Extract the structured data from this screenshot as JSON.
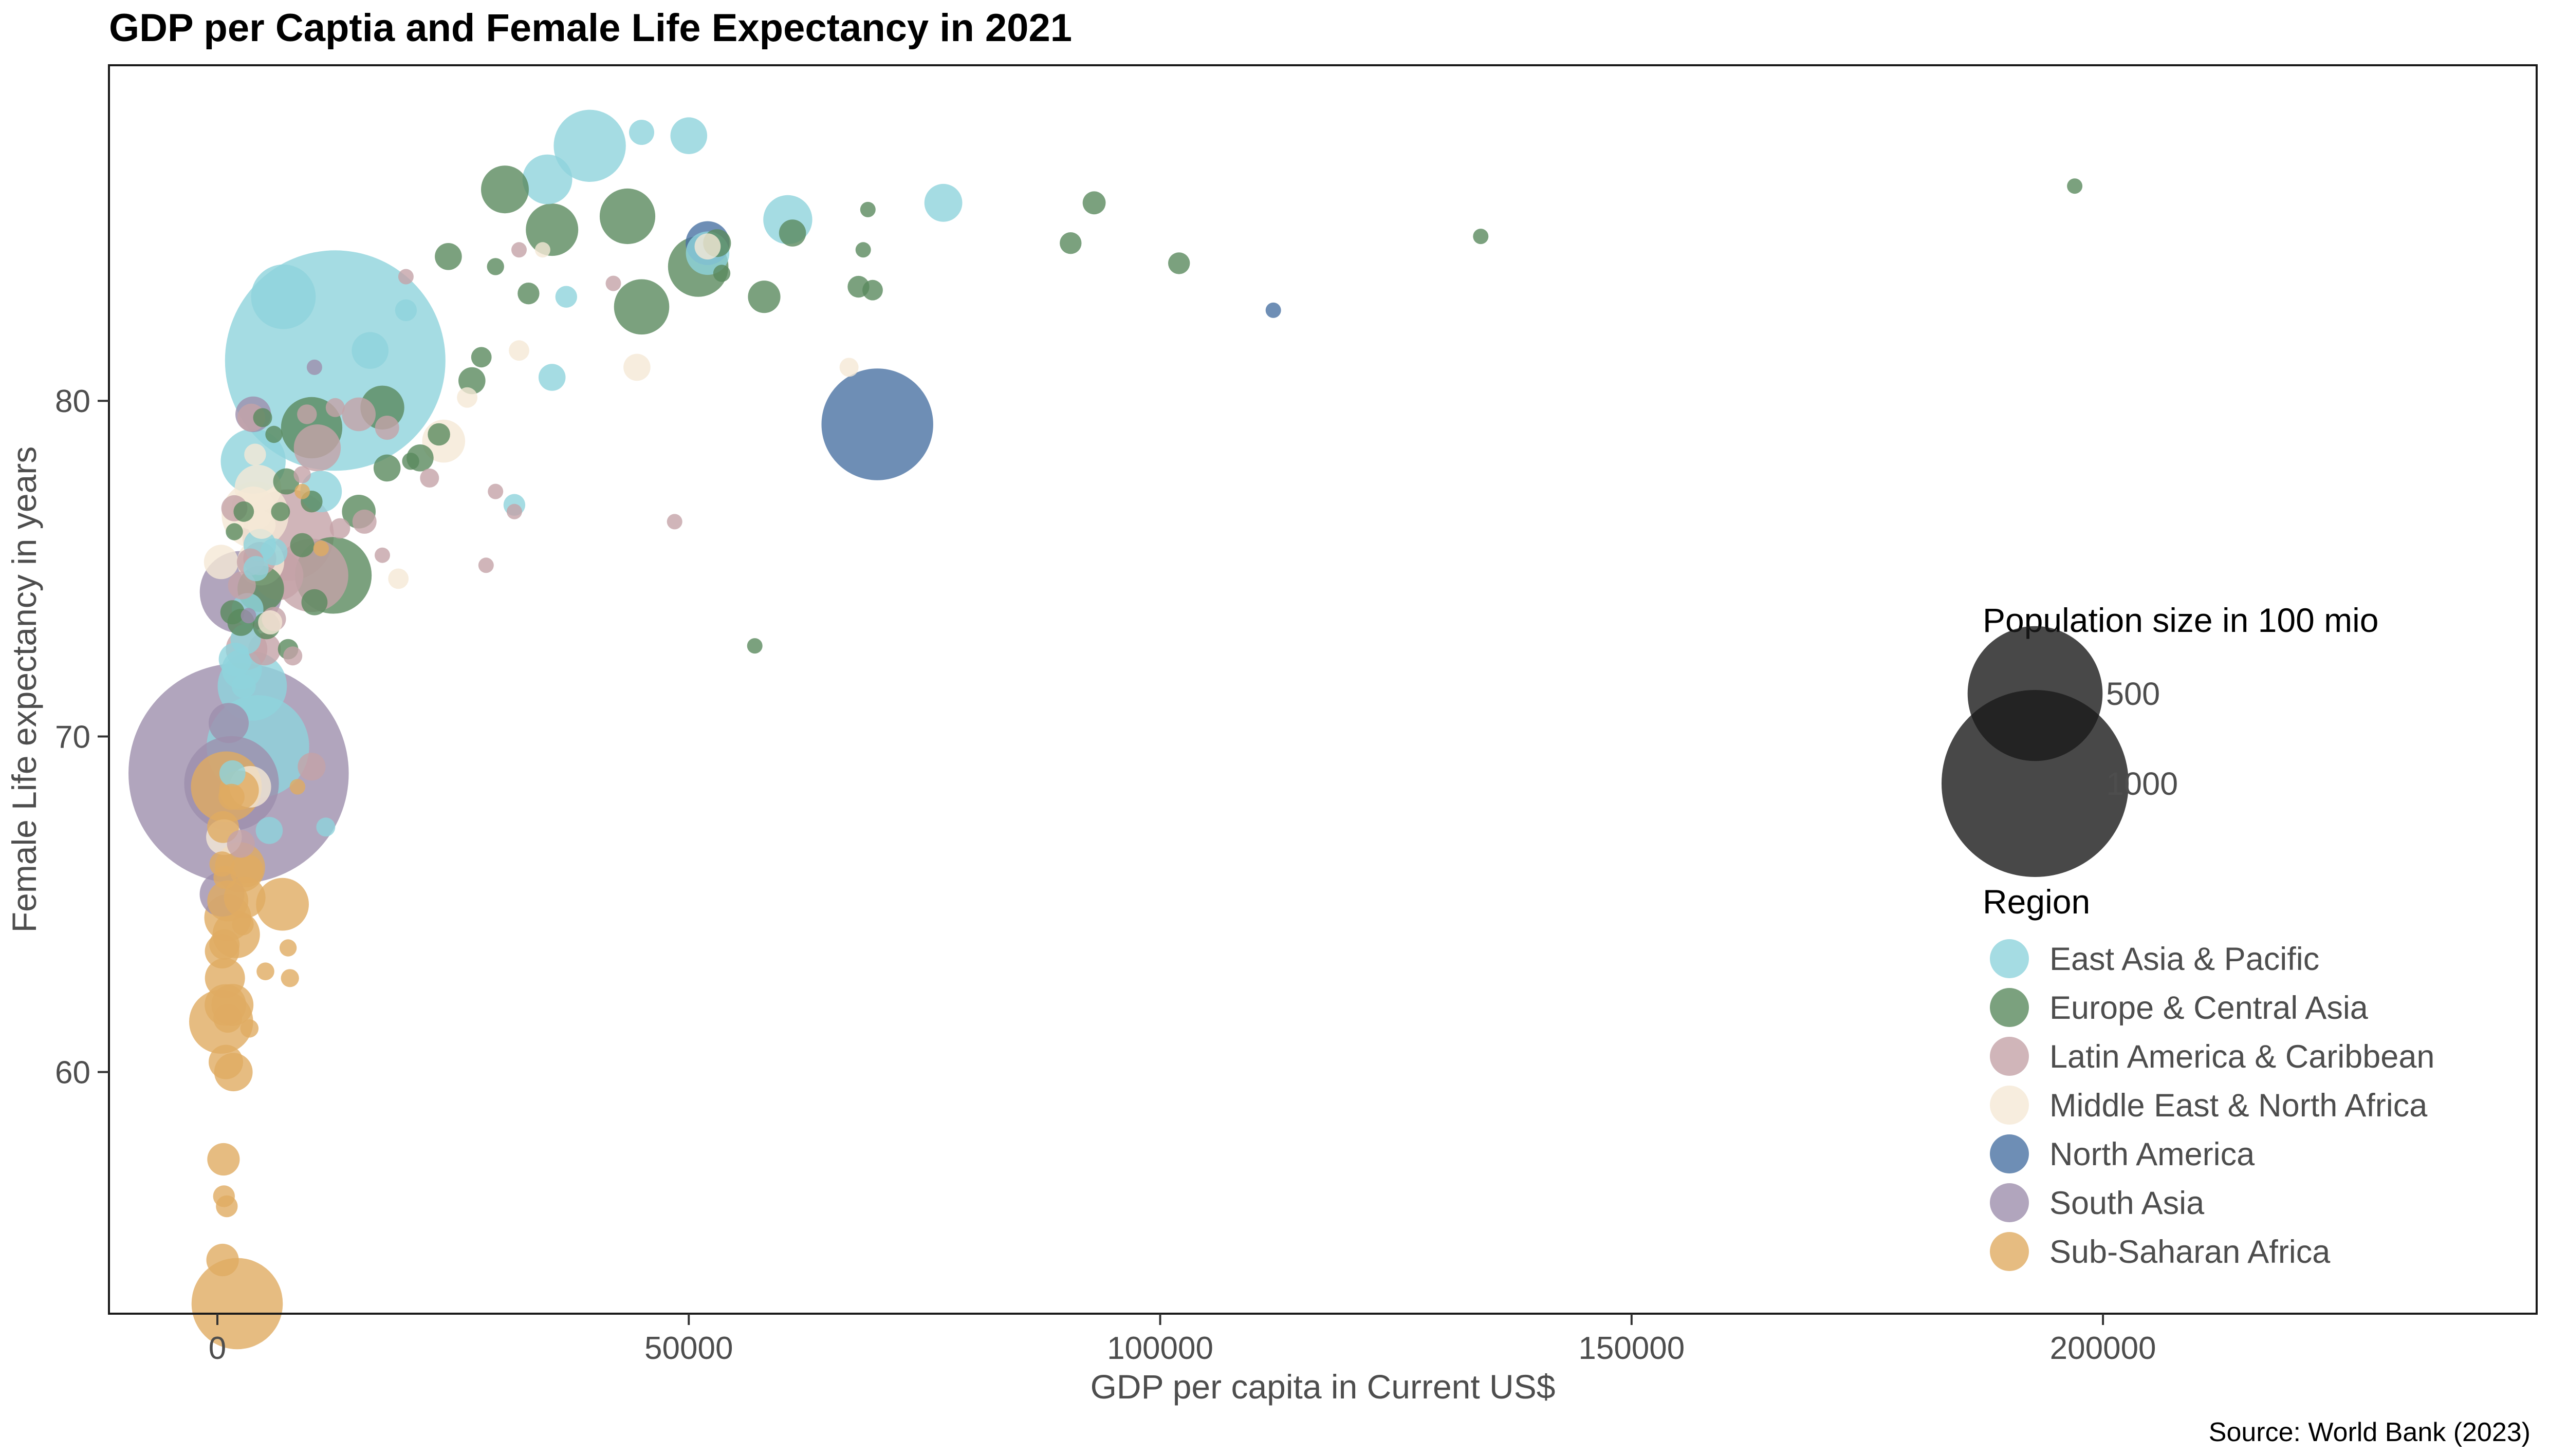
{
  "chart_data": {
    "type": "scatter",
    "title": "GDP per Captia and Female Life Expectancy in 2021",
    "xlabel": "GDP per capita in Current US$",
    "ylabel": "Female Life expectancy in years",
    "caption": "Source: World Bank (2023)",
    "xlim": [
      -11500,
      246000
    ],
    "ylim": [
      52.8,
      90.0
    ],
    "x_ticks": [
      0,
      50000,
      100000,
      150000,
      200000
    ],
    "y_ticks": [
      60,
      70,
      80
    ],
    "grid": false,
    "size_legend": {
      "title": "Population size in 100 mio",
      "items": [
        {
          "label": "500",
          "value": 500
        },
        {
          "label": "1000",
          "value": 1000
        }
      ]
    },
    "color_legend": {
      "title": "Region",
      "position": "right"
    },
    "series": [
      {
        "name": "East Asia & Pacific",
        "color": "#8fd3dc",
        "points": [
          [
            12500,
            81.2,
            1412
          ],
          [
            7000,
            83.1,
            97
          ],
          [
            39500,
            87.6,
            125
          ],
          [
            35000,
            86.6,
            52
          ],
          [
            3800,
            78.2,
            98
          ],
          [
            11000,
            77.3,
            33
          ],
          [
            3700,
            71.5,
            114
          ],
          [
            4300,
            69.7,
            275
          ],
          [
            45000,
            88.0,
            8
          ],
          [
            50000,
            87.9,
            24
          ],
          [
            60500,
            85.4,
            50
          ],
          [
            77000,
            85.9,
            26
          ],
          [
            52000,
            84.4,
            37
          ],
          [
            16200,
            81.5,
            24
          ],
          [
            20000,
            82.7,
            5
          ],
          [
            37000,
            83.1,
            5
          ],
          [
            35500,
            80.7,
            10
          ],
          [
            31500,
            76.9,
            5
          ],
          [
            2600,
            72.0,
            30
          ],
          [
            1900,
            72.3,
            18
          ],
          [
            3200,
            73.8,
            16
          ],
          [
            5500,
            67.2,
            10
          ],
          [
            11500,
            67.3,
            3
          ],
          [
            4500,
            75.7,
            17
          ],
          [
            6000,
            75.5,
            10
          ],
          [
            3000,
            72.9,
            14
          ],
          [
            4100,
            75.0,
            8
          ],
          [
            1600,
            68.9,
            9
          ],
          [
            2800,
            71.5,
            7
          ]
        ]
      },
      {
        "name": "Europe & Central Asia",
        "color": "#5a8a5e",
        "points": [
          [
            51000,
            84.0,
            83
          ],
          [
            43500,
            85.5,
            68
          ],
          [
            45000,
            82.8,
            67
          ],
          [
            35500,
            85.1,
            59
          ],
          [
            30500,
            86.3,
            47
          ],
          [
            58000,
            83.1,
            17
          ],
          [
            53000,
            84.7,
            11
          ],
          [
            61000,
            85.0,
            10
          ],
          [
            69500,
            83.3,
            4
          ],
          [
            68000,
            83.4,
            5
          ],
          [
            93000,
            85.9,
            6
          ],
          [
            102000,
            84.1,
            5
          ],
          [
            90500,
            84.7,
            5
          ],
          [
            134000,
            84.9,
            0.6
          ],
          [
            197000,
            86.4,
            0.04
          ],
          [
            69000,
            85.7,
            0.4
          ],
          [
            68500,
            84.5,
            0.4
          ],
          [
            12300,
            74.8,
            144
          ],
          [
            10000,
            79.2,
            86
          ],
          [
            17500,
            79.8,
            38
          ],
          [
            4600,
            74.4,
            44
          ],
          [
            15000,
            76.7,
            19
          ],
          [
            18000,
            78.0,
            10
          ],
          [
            21500,
            78.3,
            10
          ],
          [
            23500,
            79.0,
            5.5
          ],
          [
            27000,
            80.6,
            10
          ],
          [
            28000,
            81.3,
            4
          ],
          [
            24500,
            84.3,
            10
          ],
          [
            33000,
            83.2,
            5
          ],
          [
            29500,
            84.0,
            2
          ],
          [
            7300,
            77.6,
            9
          ],
          [
            10000,
            77.0,
            5
          ],
          [
            9000,
            75.7,
            7
          ],
          [
            7500,
            72.6,
            4
          ],
          [
            5200,
            73.3,
            10
          ],
          [
            6700,
            76.7,
            3
          ],
          [
            2500,
            73.4,
            10
          ],
          [
            1600,
            73.7,
            7
          ],
          [
            2800,
            76.7,
            4
          ],
          [
            57000,
            72.7,
            0.1
          ],
          [
            10300,
            74.0,
            9
          ],
          [
            6000,
            79.0,
            2
          ],
          [
            4800,
            79.5,
            3
          ],
          [
            1800,
            76.1,
            2
          ],
          [
            53500,
            83.8,
            2
          ],
          [
            20500,
            78.2,
            2
          ]
        ]
      },
      {
        "name": "Latin America & Caribbean",
        "color": "#c4a3a8",
        "points": [
          [
            7500,
            76.0,
            214
          ],
          [
            10000,
            74.8,
            130
          ],
          [
            6500,
            74.8,
            51
          ],
          [
            10600,
            78.6,
            45
          ],
          [
            15000,
            79.6,
            19
          ],
          [
            3100,
            72.6,
            33
          ],
          [
            4500,
            75.3,
            18
          ],
          [
            5000,
            72.6,
            17
          ],
          [
            2600,
            74.5,
            11
          ],
          [
            3500,
            75.2,
            10
          ],
          [
            15600,
            76.4,
            7
          ],
          [
            9500,
            79.6,
            3.5
          ],
          [
            18000,
            79.2,
            7
          ],
          [
            22500,
            77.7,
            3
          ],
          [
            28500,
            75.1,
            0.4
          ],
          [
            32000,
            84.5,
            0.4
          ],
          [
            48500,
            76.4,
            0.4
          ],
          [
            42000,
            83.5,
            0.2
          ],
          [
            20000,
            83.7,
            0.4
          ],
          [
            17500,
            75.4,
            0.5
          ],
          [
            8000,
            72.4,
            3
          ],
          [
            1800,
            76.8,
            9
          ],
          [
            10000,
            69.1,
            11
          ],
          [
            3600,
            79.5,
            11
          ],
          [
            12500,
            79.8,
            3
          ],
          [
            29500,
            77.3,
            0.3
          ],
          [
            31500,
            76.7,
            0.4
          ],
          [
            9000,
            77.8,
            2
          ],
          [
            2500,
            66.8,
            11
          ],
          [
            6000,
            73.5,
            7
          ],
          [
            13000,
            76.2,
            4
          ]
        ]
      },
      {
        "name": "Middle East & North Africa",
        "color": "#f5e8d6",
        "points": [
          [
            4000,
            76.6,
            105
          ],
          [
            4300,
            77.4,
            44
          ],
          [
            3800,
            76.8,
            37
          ],
          [
            4600,
            75.2,
            45
          ],
          [
            44500,
            81.0,
            10
          ],
          [
            67000,
            81.0,
            3
          ],
          [
            52000,
            84.6,
            9
          ],
          [
            32000,
            81.5,
            4
          ],
          [
            24000,
            78.8,
            36
          ],
          [
            19200,
            74.7,
            4
          ],
          [
            26500,
            80.1,
            4
          ],
          [
            4700,
            76.3,
            11
          ],
          [
            4000,
            78.4,
            5
          ],
          [
            400,
            75.2,
            20
          ],
          [
            3500,
            68.5,
            33
          ],
          [
            700,
            67.0,
            22
          ],
          [
            34500,
            84.5,
            0.5
          ],
          [
            5600,
            73.4,
            7
          ]
        ]
      },
      {
        "name": "North America",
        "color": "#4a72a3",
        "points": [
          [
            70000,
            79.3,
            332
          ],
          [
            52000,
            84.7,
            38
          ],
          [
            112000,
            82.7,
            0.6
          ]
        ]
      },
      {
        "name": "South Asia",
        "color": "#9e8fac",
        "points": [
          [
            2250,
            68.9,
            1408
          ],
          [
            2500,
            74.3,
            169
          ],
          [
            1500,
            68.6,
            231
          ],
          [
            3800,
            79.6,
            22
          ],
          [
            1200,
            70.4,
            30
          ],
          [
            500,
            65.3,
            40
          ],
          [
            10300,
            81.0,
            0.5
          ],
          [
            3300,
            73.6,
            0.8
          ]
        ]
      },
      {
        "name": "Sub-Saharan Africa",
        "color": "#e0ab62",
        "points": [
          [
            2100,
            53.1,
            213
          ],
          [
            950,
            68.5,
            120
          ],
          [
            500,
            63.6,
            20
          ],
          [
            400,
            61.5,
            95
          ],
          [
            6900,
            65.0,
            60
          ],
          [
            2400,
            66.1,
            53
          ],
          [
            1100,
            64.6,
            45
          ],
          [
            2000,
            64.1,
            46
          ],
          [
            800,
            62.8,
            30
          ],
          [
            850,
            62.0,
            33
          ],
          [
            1600,
            62.0,
            34
          ],
          [
            2300,
            68.4,
            29
          ],
          [
            1100,
            65.1,
            32
          ],
          [
            1700,
            60.0,
            27
          ],
          [
            650,
            57.4,
            17
          ],
          [
            550,
            54.4,
            17
          ],
          [
            2900,
            65.2,
            33
          ],
          [
            3100,
            66.0,
            18
          ],
          [
            700,
            56.3,
            5
          ],
          [
            1000,
            56.0,
            5
          ],
          [
            7500,
            63.7,
            2
          ],
          [
            7700,
            62.8,
            2.5
          ],
          [
            3400,
            61.3,
            2.6
          ],
          [
            5100,
            63.0,
            2.3
          ],
          [
            8500,
            68.5,
            1.3
          ],
          [
            11000,
            75.6,
            1.3
          ],
          [
            9000,
            77.3,
            0.1
          ],
          [
            600,
            67.3,
            16
          ],
          [
            900,
            60.3,
            20
          ],
          [
            1100,
            61.6,
            12
          ],
          [
            800,
            65.8,
            6
          ],
          [
            1500,
            68.2,
            9
          ],
          [
            750,
            63.8,
            14
          ],
          [
            2700,
            64.4,
            5
          ],
          [
            500,
            66.2,
            8
          ]
        ]
      }
    ]
  }
}
